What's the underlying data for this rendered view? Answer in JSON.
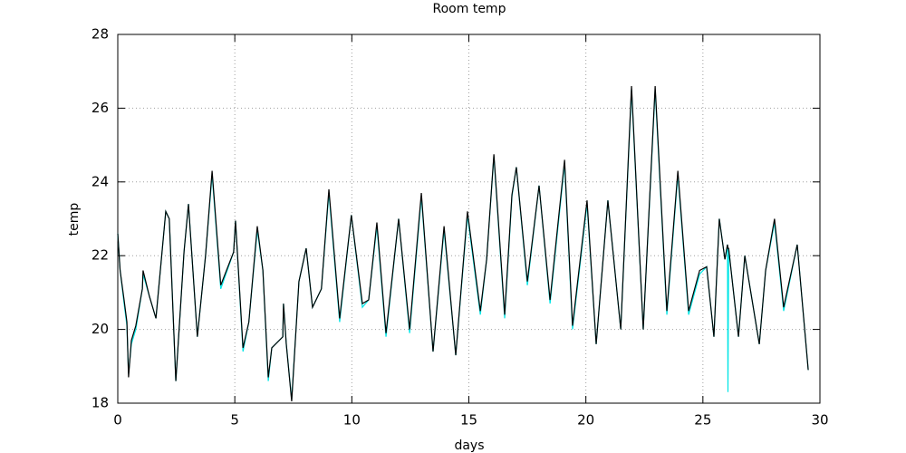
{
  "chart_data": {
    "type": "line",
    "title": "Room temp",
    "x_label": "days",
    "y_label": "temp",
    "x": [
      0,
      0.1,
      0.27,
      0.39,
      0.46,
      0.58,
      0.77,
      1.05,
      1.08,
      1.35,
      1.63,
      2.05,
      2.2,
      2.48,
      2.83,
      3.02,
      3.4,
      3.75,
      4.03,
      4.4,
      4.95,
      5.03,
      5.35,
      5.6,
      5.96,
      6.2,
      6.43,
      6.58,
      7.05,
      7.08,
      7.2,
      7.43,
      7.74,
      8.05,
      8.32,
      8.7,
      9.02,
      9.48,
      9.98,
      10.45,
      10.72,
      11.07,
      11.46,
      12.0,
      12.47,
      12.97,
      13.47,
      13.94,
      14.44,
      14.94,
      15.49,
      15.76,
      16.07,
      16.53,
      16.84,
      17.03,
      17.5,
      18.0,
      18.47,
      19.09,
      19.43,
      20.05,
      20.44,
      20.94,
      21.49,
      21.95,
      22.45,
      22.96,
      23.46,
      23.93,
      24.39,
      24.86,
      25.16,
      25.47,
      25.7,
      25.94,
      26.05,
      26.07,
      26.1,
      26.52,
      26.79,
      27.41,
      27.68,
      28.06,
      28.45,
      29.03,
      29.5
    ],
    "series": [
      {
        "color": "#00e5e5",
        "values": [
          22.6,
          21.6,
          20.7,
          20.1,
          18.8,
          19.6,
          20.0,
          21.1,
          21.5,
          20.9,
          20.3,
          23.2,
          23.0,
          18.6,
          22.1,
          23.4,
          19.8,
          22.0,
          24.2,
          21.1,
          22.1,
          22.95,
          19.4,
          20.2,
          22.7,
          21.6,
          18.6,
          19.5,
          19.8,
          20.7,
          19.6,
          18.1,
          21.3,
          22.2,
          20.6,
          21.1,
          23.7,
          20.2,
          23.1,
          20.6,
          20.8,
          22.8,
          19.8,
          23.0,
          19.9,
          23.6,
          19.4,
          22.7,
          19.3,
          23.1,
          20.4,
          21.9,
          24.7,
          20.3,
          23.6,
          24.4,
          21.2,
          23.9,
          20.7,
          24.5,
          20.0,
          23.4,
          19.6,
          23.5,
          20.0,
          26.5,
          20.0,
          26.5,
          20.4,
          24.2,
          20.4,
          21.5,
          21.7,
          19.8,
          23.0,
          21.9,
          22.3,
          18.3,
          22.2,
          19.8,
          22.0,
          19.6,
          21.6,
          22.9,
          20.5,
          22.3,
          18.9
        ]
      },
      {
        "color": "#000000",
        "values": [
          22.6,
          21.6,
          20.8,
          20.2,
          18.7,
          19.7,
          20.1,
          21.1,
          21.6,
          20.9,
          20.3,
          23.2,
          23.0,
          18.6,
          22.1,
          23.4,
          19.8,
          22.0,
          24.3,
          21.2,
          22.1,
          22.95,
          19.5,
          20.2,
          22.8,
          21.6,
          18.7,
          19.5,
          19.8,
          20.7,
          19.6,
          18.05,
          21.3,
          22.2,
          20.6,
          21.1,
          23.8,
          20.3,
          23.1,
          20.7,
          20.8,
          22.9,
          19.9,
          23.0,
          20.0,
          23.7,
          19.4,
          22.8,
          19.3,
          23.2,
          20.5,
          21.9,
          24.75,
          20.4,
          23.65,
          24.4,
          21.3,
          23.9,
          20.8,
          24.6,
          20.1,
          23.5,
          19.6,
          23.5,
          20.0,
          26.6,
          20.0,
          26.6,
          20.5,
          24.3,
          20.5,
          21.6,
          21.7,
          19.8,
          23.0,
          21.9,
          22.3,
          22.2,
          22.2,
          19.8,
          22.0,
          19.6,
          21.6,
          23.0,
          20.6,
          22.3,
          18.9
        ]
      }
    ],
    "xlim": [
      0,
      30
    ],
    "xticks": [
      0,
      5,
      10,
      15,
      20,
      25,
      30
    ],
    "ylim": [
      18,
      28
    ],
    "yticks": [
      18,
      20,
      22,
      24,
      26,
      28
    ],
    "grid": true
  }
}
